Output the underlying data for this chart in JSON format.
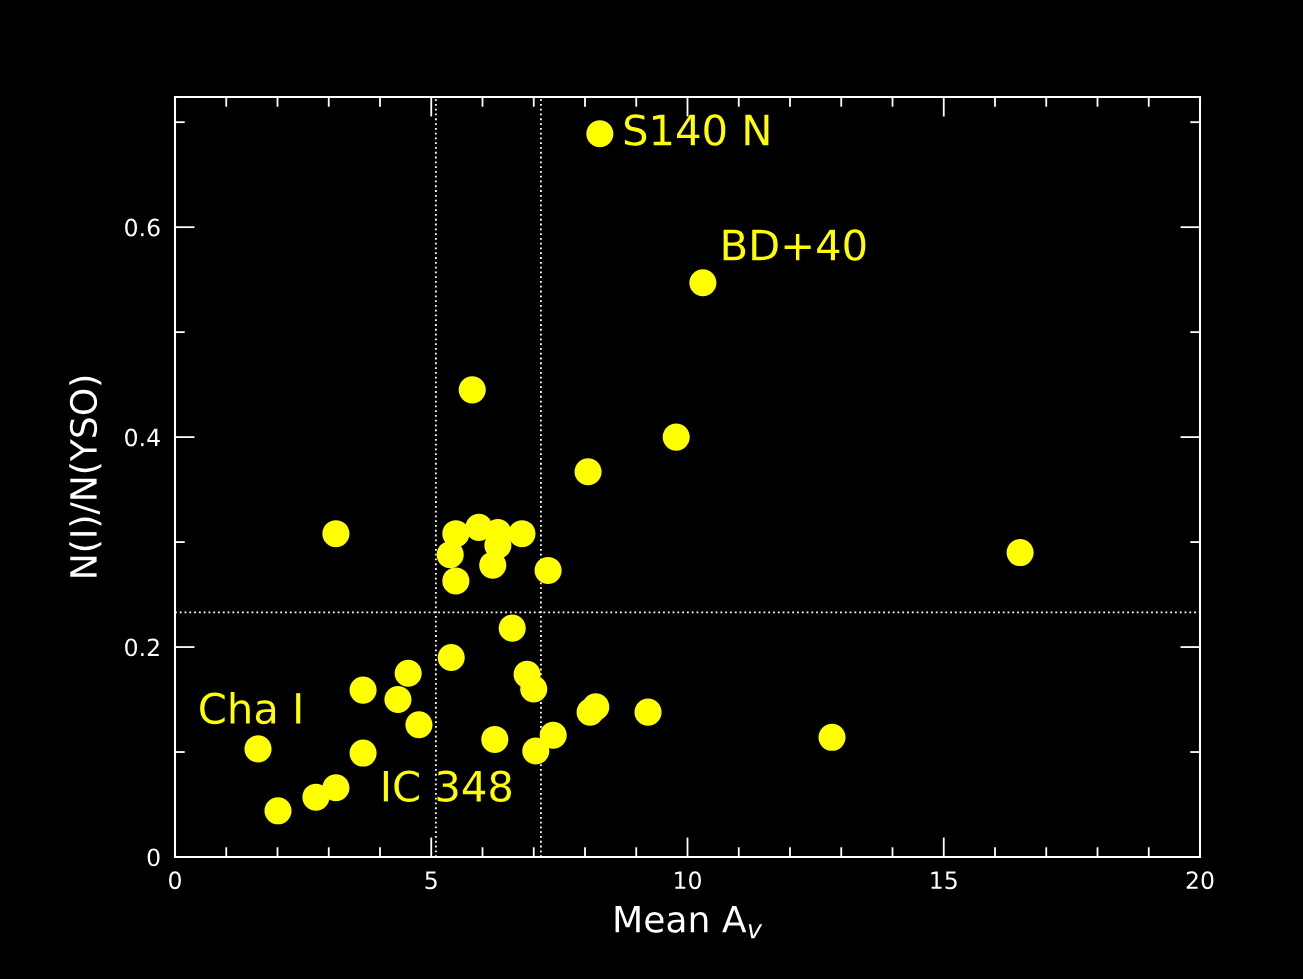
{
  "chart_data": {
    "type": "scatter",
    "xlabel": "Mean A$_{v}$",
    "ylabel": "N(I)/N(YSO)",
    "xlim": [
      0,
      20
    ],
    "ylim": [
      0,
      0.724
    ],
    "xticks": [
      0,
      {
        "value": 1,
        "label": null
      },
      {
        "value": 2,
        "label": null
      },
      {
        "value": 3,
        "label": null
      },
      {
        "value": 4,
        "label": null
      },
      5,
      {
        "value": 6,
        "label": null
      },
      {
        "value": 7,
        "label": null
      },
      {
        "value": 8,
        "label": null
      },
      {
        "value": 9,
        "label": null
      },
      10,
      {
        "value": 11,
        "label": null
      },
      {
        "value": 12,
        "label": null
      },
      {
        "value": 13,
        "label": null
      },
      {
        "value": 14,
        "label": null
      },
      15,
      {
        "value": 16,
        "label": null
      },
      {
        "value": 17,
        "label": null
      },
      {
        "value": 18,
        "label": null
      },
      {
        "value": 19,
        "label": null
      },
      20
    ],
    "yticks": [
      0,
      {
        "value": 0.1,
        "label": null
      },
      0.2,
      {
        "value": 0.3,
        "label": null
      },
      0.4,
      {
        "value": 0.5,
        "label": null
      },
      0.6,
      {
        "value": 0.7,
        "label": null
      }
    ],
    "marker": "circle",
    "grid": false,
    "legend": false,
    "series": [
      {
        "color": "#ffff00",
        "x": [
          8.29,
          10.3,
          5.8,
          9.78,
          8.06,
          3.14,
          5.48,
          5.93,
          6.3,
          6.77,
          5.37,
          6.3,
          6.2,
          5.48,
          7.28,
          16.49,
          6.58,
          5.39,
          4.55,
          6.87,
          7.0,
          3.67,
          4.35,
          4.76,
          8.1,
          8.21,
          9.23,
          7.38,
          6.24,
          7.04,
          12.82,
          1.62,
          3.67,
          3.14,
          2.75,
          2.01
        ],
        "values": [
          0.689,
          0.547,
          0.445,
          0.4,
          0.367,
          0.308,
          0.308,
          0.314,
          0.309,
          0.308,
          0.288,
          0.297,
          0.278,
          0.263,
          0.273,
          0.29,
          0.218,
          0.19,
          0.175,
          0.174,
          0.16,
          0.159,
          0.15,
          0.126,
          0.138,
          0.143,
          0.138,
          0.116,
          0.112,
          0.101,
          0.114,
          0.103,
          0.099,
          0.066,
          0.057,
          0.044
        ]
      }
    ],
    "ref_lines": [
      {
        "axis": "x",
        "value": 5.09,
        "color": "#ffffff",
        "line_style": "dotted"
      },
      {
        "axis": "x",
        "value": 7.14,
        "color": "#ffffff",
        "line_style": "dotted"
      },
      {
        "axis": "y",
        "value": 0.233,
        "color": "#ffffff",
        "line_style": "dotted"
      }
    ],
    "annotations": [
      {
        "text": "S140 N",
        "x": 8.29,
        "y": 0.689
      },
      {
        "text": "BD+40",
        "x": 10.3,
        "y": 0.547
      },
      {
        "text": "Cha I",
        "x": 1.62,
        "y": 0.103
      },
      {
        "text": "IC 348",
        "x": 3.67,
        "y": 0.099
      }
    ]
  }
}
